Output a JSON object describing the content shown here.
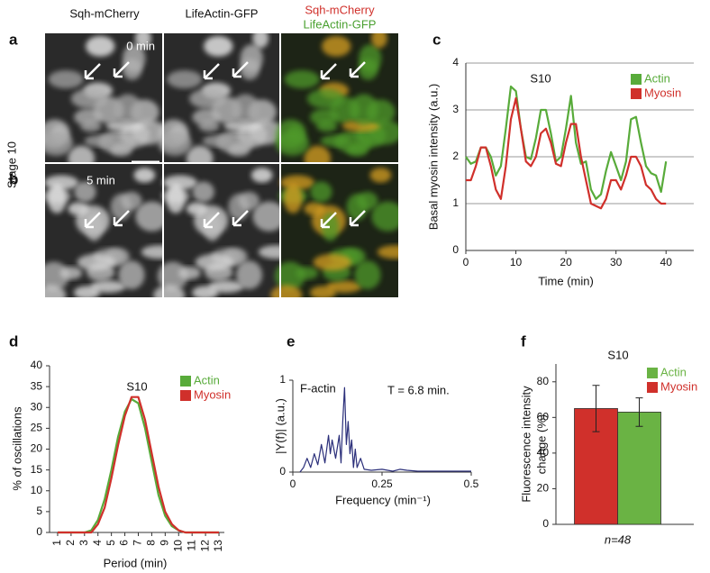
{
  "images": {
    "column_headers": [
      "Sqh-mCherry",
      "LifeActin-GFP"
    ],
    "merge_header": [
      "Sqh-mCherry",
      "LifeActin-GFP"
    ],
    "side_label": "Stage 10",
    "rows": [
      {
        "label": "a",
        "time": "0 min"
      },
      {
        "label": "b",
        "time": "5 min"
      }
    ]
  },
  "chart_data": [
    {
      "type": "line",
      "panel_label": "c",
      "title": "S10",
      "xlabel": "Time (min)",
      "ylabel": "Basal myosin intensity (a.u.)",
      "x": [
        0,
        1,
        2,
        3,
        4,
        5,
        6,
        7,
        8,
        9,
        10,
        11,
        12,
        13,
        14,
        15,
        16,
        17,
        18,
        19,
        20,
        21,
        22,
        23,
        24,
        25,
        26,
        27,
        28,
        29,
        30,
        31,
        32,
        33,
        34,
        35,
        36,
        37,
        38,
        39,
        40
      ],
      "series": [
        {
          "name": "Actin",
          "color": "#58ab3a",
          "values": [
            2.0,
            1.85,
            1.9,
            2.2,
            2.2,
            2.0,
            1.6,
            1.8,
            2.6,
            3.5,
            3.4,
            2.6,
            2.0,
            1.95,
            2.4,
            3.0,
            3.0,
            2.5,
            1.9,
            2.0,
            2.6,
            3.3,
            2.3,
            1.85,
            1.9,
            1.3,
            1.1,
            1.2,
            1.7,
            2.1,
            1.8,
            1.5,
            1.9,
            2.8,
            2.85,
            2.3,
            1.8,
            1.65,
            1.6,
            1.25,
            1.9
          ]
        },
        {
          "name": "Myosin",
          "color": "#d0302b",
          "values": [
            1.5,
            1.5,
            1.8,
            2.2,
            2.2,
            1.8,
            1.3,
            1.1,
            1.8,
            2.8,
            3.25,
            2.6,
            1.9,
            1.8,
            2.0,
            2.5,
            2.6,
            2.3,
            1.85,
            1.8,
            2.3,
            2.7,
            2.7,
            2.0,
            1.5,
            1.0,
            0.95,
            0.9,
            1.1,
            1.5,
            1.5,
            1.3,
            1.6,
            2.0,
            2.0,
            1.8,
            1.4,
            1.3,
            1.1,
            1.0,
            1.0
          ]
        }
      ],
      "xlim": [
        0,
        45
      ],
      "xticks": [
        0,
        10,
        20,
        30,
        40
      ],
      "ylim": [
        0,
        4
      ],
      "yticks": [
        0,
        1,
        2,
        3,
        4
      ],
      "grid": true
    },
    {
      "type": "line",
      "panel_label": "d",
      "title": "S10",
      "xlabel": "Period (min)",
      "ylabel": "% of oscillations",
      "x": [
        1,
        1.5,
        2,
        2.5,
        3,
        3.5,
        4,
        4.5,
        5,
        5.5,
        6,
        6.5,
        7,
        7.5,
        8,
        8.5,
        9,
        9.5,
        10,
        10.5,
        11,
        11.5,
        12,
        12.5,
        13
      ],
      "series": [
        {
          "name": "Actin",
          "color": "#58ab3a",
          "values": [
            0,
            0,
            0,
            0,
            0,
            0.5,
            3,
            8,
            15,
            23,
            29,
            32,
            31,
            25,
            17,
            9,
            4,
            1.5,
            0.5,
            0,
            0,
            0,
            0,
            0,
            0
          ]
        },
        {
          "name": "Myosin",
          "color": "#d0302b",
          "values": [
            0,
            0,
            0,
            0,
            0,
            0,
            2,
            6,
            13,
            21,
            28,
            32.5,
            32.5,
            27,
            19,
            11,
            5,
            2,
            0.5,
            0,
            0,
            0,
            0,
            0,
            0
          ]
        }
      ],
      "xlim": [
        0.4,
        13.4
      ],
      "xticks": [
        1,
        2,
        3,
        4,
        5,
        6,
        7,
        8,
        9,
        10,
        11,
        12,
        13
      ],
      "ylim": [
        0,
        40
      ],
      "yticks": [
        0,
        5,
        10,
        15,
        20,
        25,
        30,
        35,
        40
      ],
      "grid": false
    },
    {
      "type": "line",
      "panel_label": "e",
      "xlabel": "Frequency (min⁻¹)",
      "ylabel": "|Y(f)| (a.u.)",
      "annotations": [
        "F-actin",
        "T = 6.8 min."
      ],
      "color": "#2b2f7a",
      "x": [
        0.02,
        0.03,
        0.04,
        0.05,
        0.06,
        0.07,
        0.08,
        0.09,
        0.1,
        0.105,
        0.11,
        0.12,
        0.13,
        0.135,
        0.14,
        0.145,
        0.15,
        0.155,
        0.16,
        0.165,
        0.17,
        0.175,
        0.18,
        0.19,
        0.2,
        0.22,
        0.25,
        0.28,
        0.3,
        0.32,
        0.35,
        0.4,
        0.45,
        0.5
      ],
      "values": [
        0,
        0.05,
        0.15,
        0.05,
        0.2,
        0.08,
        0.3,
        0.1,
        0.4,
        0.2,
        0.35,
        0.15,
        0.4,
        0.1,
        0.55,
        0.92,
        0.3,
        0.55,
        0.2,
        0.35,
        0.05,
        0.25,
        0.05,
        0.15,
        0.03,
        0.02,
        0.03,
        0.01,
        0.03,
        0.02,
        0.01,
        0.01,
        0.01,
        0.01
      ],
      "xlim": [
        0,
        0.5
      ],
      "xticks": [
        0,
        0.25,
        0.5
      ],
      "ylim": [
        0,
        1
      ],
      "yticks": [
        0,
        1
      ],
      "grid": false
    },
    {
      "type": "bar",
      "panel_label": "f",
      "title": "S10",
      "ylabel": [
        "Fluorescence intensity",
        "change (%)"
      ],
      "categories": [
        "n=48"
      ],
      "series": [
        {
          "name": "Actin",
          "color": "#6ab344",
          "values": [
            63
          ],
          "errors": [
            8
          ]
        },
        {
          "name": "Myosin",
          "color": "#d0302b",
          "values": [
            65
          ],
          "errors": [
            13
          ]
        }
      ],
      "ylim": [
        0,
        90
      ],
      "yticks": [
        0,
        20,
        40,
        60,
        80
      ],
      "grid": false
    }
  ]
}
